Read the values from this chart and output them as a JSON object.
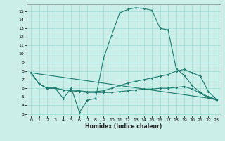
{
  "xlabel": "Humidex (Indice chaleur)",
  "bg_color": "#cceee8",
  "grid_color": "#99ddd4",
  "line_color": "#1a7a6e",
  "xlim": [
    -0.5,
    23.5
  ],
  "ylim": [
    2.8,
    15.8
  ],
  "yticks": [
    3,
    4,
    5,
    6,
    7,
    8,
    9,
    10,
    11,
    12,
    13,
    14,
    15
  ],
  "xticks": [
    0,
    1,
    2,
    3,
    4,
    5,
    6,
    7,
    8,
    9,
    10,
    11,
    12,
    13,
    14,
    15,
    16,
    17,
    18,
    19,
    20,
    21,
    22,
    23
  ],
  "line1_x": [
    0,
    1,
    2,
    3,
    4,
    5,
    6,
    7,
    8,
    9,
    10,
    11,
    12,
    13,
    14,
    15,
    16,
    17,
    18,
    19,
    20,
    21,
    22,
    23
  ],
  "line1_y": [
    7.8,
    6.5,
    6.0,
    6.0,
    4.8,
    6.0,
    3.2,
    4.6,
    4.8,
    9.5,
    12.2,
    14.8,
    15.2,
    15.4,
    15.3,
    15.1,
    13.0,
    12.8,
    8.3,
    7.5,
    6.3,
    5.5,
    5.0,
    4.7
  ],
  "line2_x": [
    0,
    1,
    2,
    3,
    4,
    5,
    6,
    7,
    8,
    9,
    10,
    11,
    12,
    13,
    14,
    15,
    16,
    17,
    18,
    19,
    20,
    21,
    22,
    23
  ],
  "line2_y": [
    7.8,
    6.5,
    6.0,
    6.0,
    5.8,
    5.8,
    5.7,
    5.6,
    5.6,
    5.7,
    6.0,
    6.3,
    6.6,
    6.8,
    7.0,
    7.2,
    7.4,
    7.6,
    8.0,
    8.2,
    7.8,
    7.4,
    5.6,
    4.7
  ],
  "line3_x": [
    0,
    23
  ],
  "line3_y": [
    7.8,
    4.7
  ],
  "line4_x": [
    0,
    1,
    2,
    3,
    4,
    5,
    6,
    7,
    8,
    9,
    10,
    11,
    12,
    13,
    14,
    15,
    16,
    17,
    18,
    19,
    20,
    21,
    22,
    23
  ],
  "line4_y": [
    7.8,
    6.5,
    6.0,
    6.0,
    5.8,
    5.7,
    5.6,
    5.5,
    5.5,
    5.5,
    5.5,
    5.6,
    5.7,
    5.8,
    5.9,
    5.9,
    6.0,
    6.0,
    6.1,
    6.2,
    5.9,
    5.4,
    4.9,
    4.6
  ]
}
